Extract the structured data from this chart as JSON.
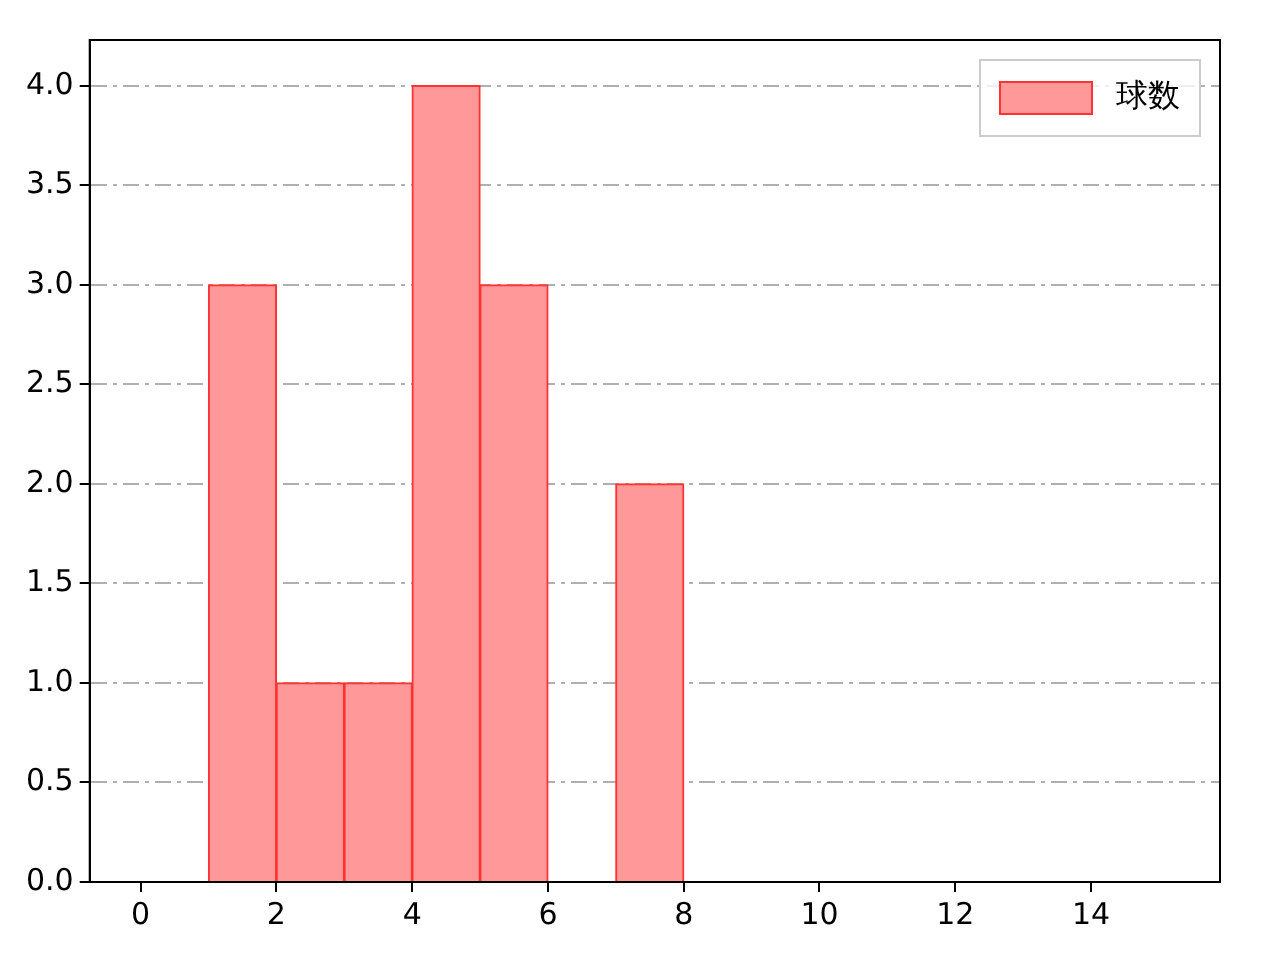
{
  "chart_data": {
    "type": "histogram",
    "bins": [
      1,
      2,
      3,
      4,
      5,
      6,
      7,
      8
    ],
    "series": [
      {
        "name": "球数",
        "color": "#ff9999",
        "values": [
          3,
          1,
          1,
          4,
          3,
          0,
          2
        ]
      }
    ],
    "xlim": [
      -0.75,
      15.9
    ],
    "xticks": [
      0,
      2,
      4,
      6,
      8,
      10,
      12,
      14
    ],
    "ylim": [
      0,
      4.23
    ],
    "yticks": [
      {
        "value": 0,
        "label": "0.0"
      },
      {
        "value": 0.5,
        "label": "0.5"
      },
      {
        "value": 1,
        "label": "1.0"
      },
      {
        "value": 1.5,
        "label": "1.5"
      },
      {
        "value": 2,
        "label": "2.0"
      },
      {
        "value": 2.5,
        "label": "2.5"
      },
      {
        "value": 3,
        "label": "3.0"
      },
      {
        "value": 3.5,
        "label": "3.5"
      },
      {
        "value": 4,
        "label": "4.0"
      }
    ],
    "grid": "y",
    "legend": "top right"
  }
}
